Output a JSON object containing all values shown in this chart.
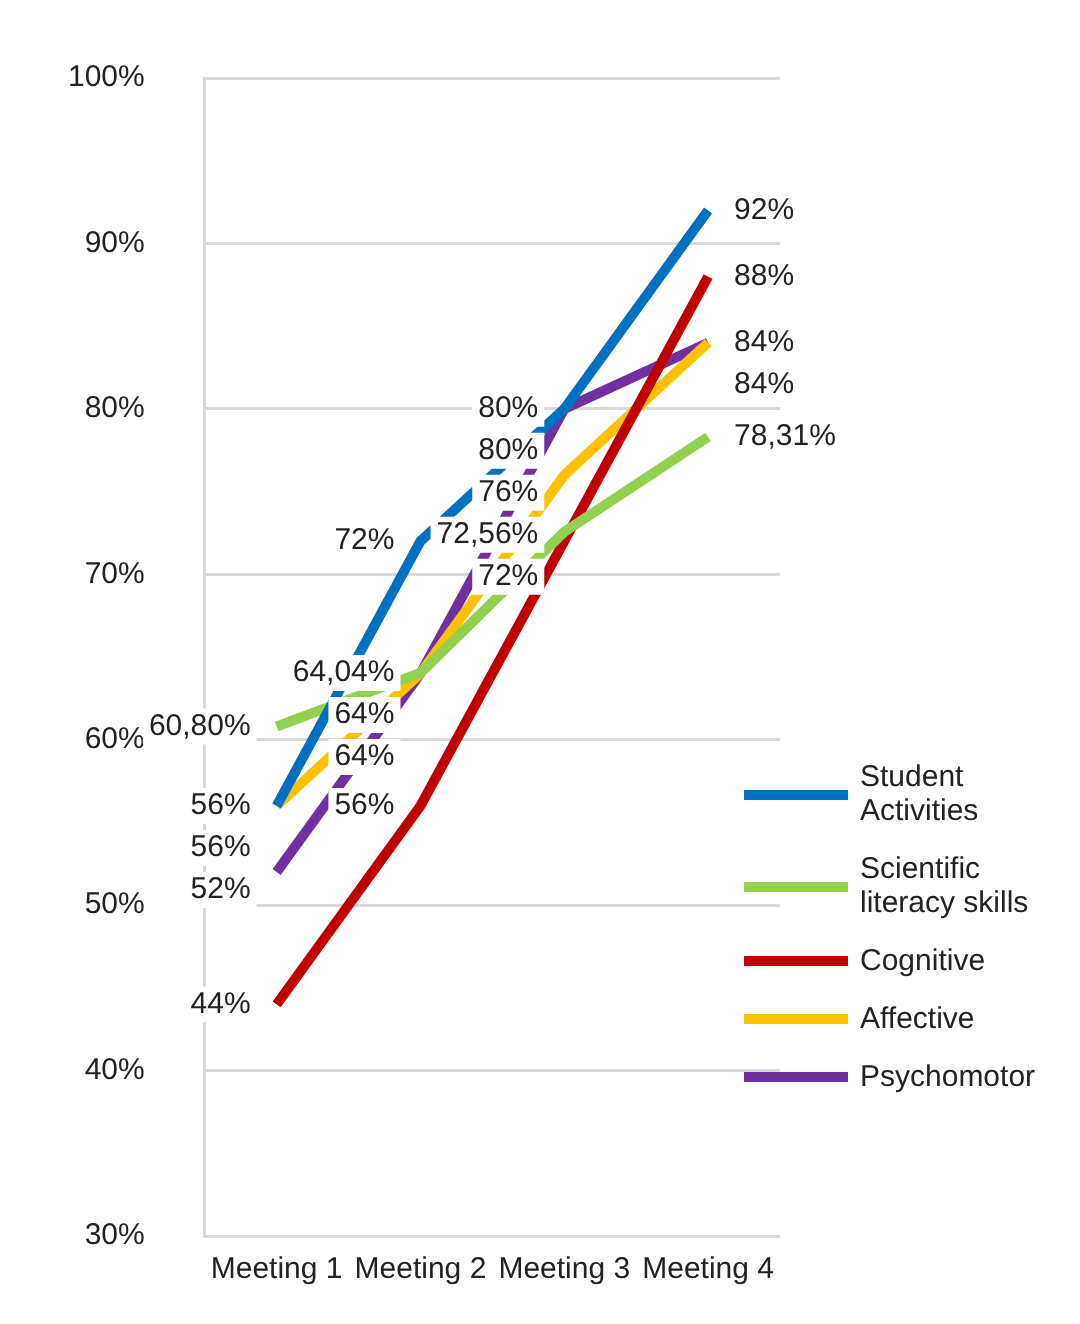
{
  "chart_data": {
    "type": "line",
    "categories": [
      "Meeting 1",
      "Meeting 2",
      "Meeting 3",
      "Meeting 4"
    ],
    "ylim": [
      30,
      100
    ],
    "yticks": [
      {
        "value": 30,
        "label": "30%"
      },
      {
        "value": 40,
        "label": "40%"
      },
      {
        "value": 50,
        "label": "50%"
      },
      {
        "value": 60,
        "label": "60%"
      },
      {
        "value": 70,
        "label": "70%"
      },
      {
        "value": 80,
        "label": "80%"
      },
      {
        "value": 90,
        "label": "90%"
      },
      {
        "value": 100,
        "label": "100%"
      }
    ],
    "grid": "y",
    "legend": "right",
    "marker": "none",
    "line_style": "solid",
    "series": [
      {
        "name": "Student Activities",
        "color": "#0070c0",
        "values": [
          56,
          72,
          80,
          92
        ],
        "value_labels": [
          "56%",
          "72%",
          "80%",
          "92%"
        ]
      },
      {
        "name": "Scientific literacy skills",
        "color": "#92d050",
        "values": [
          60.8,
          64.04,
          72.56,
          78.31
        ],
        "value_labels": [
          "60,80%",
          "64,04%",
          "72,56%",
          "78,31%"
        ]
      },
      {
        "name": "Cognitive",
        "color": "#c00000",
        "values": [
          44,
          56,
          72,
          88
        ],
        "value_labels": [
          "44%",
          "56%",
          "72%",
          "88%"
        ]
      },
      {
        "name": "Affective",
        "color": "#ffc000",
        "values": [
          56,
          64,
          76,
          84
        ],
        "value_labels": [
          "56%",
          "64%",
          "76%",
          "84%"
        ]
      },
      {
        "name": "Psychomotor",
        "color": "#7030a0",
        "values": [
          52,
          64,
          80,
          84
        ],
        "value_labels": [
          "52%",
          "64%",
          "80%",
          "84%"
        ]
      }
    ]
  }
}
